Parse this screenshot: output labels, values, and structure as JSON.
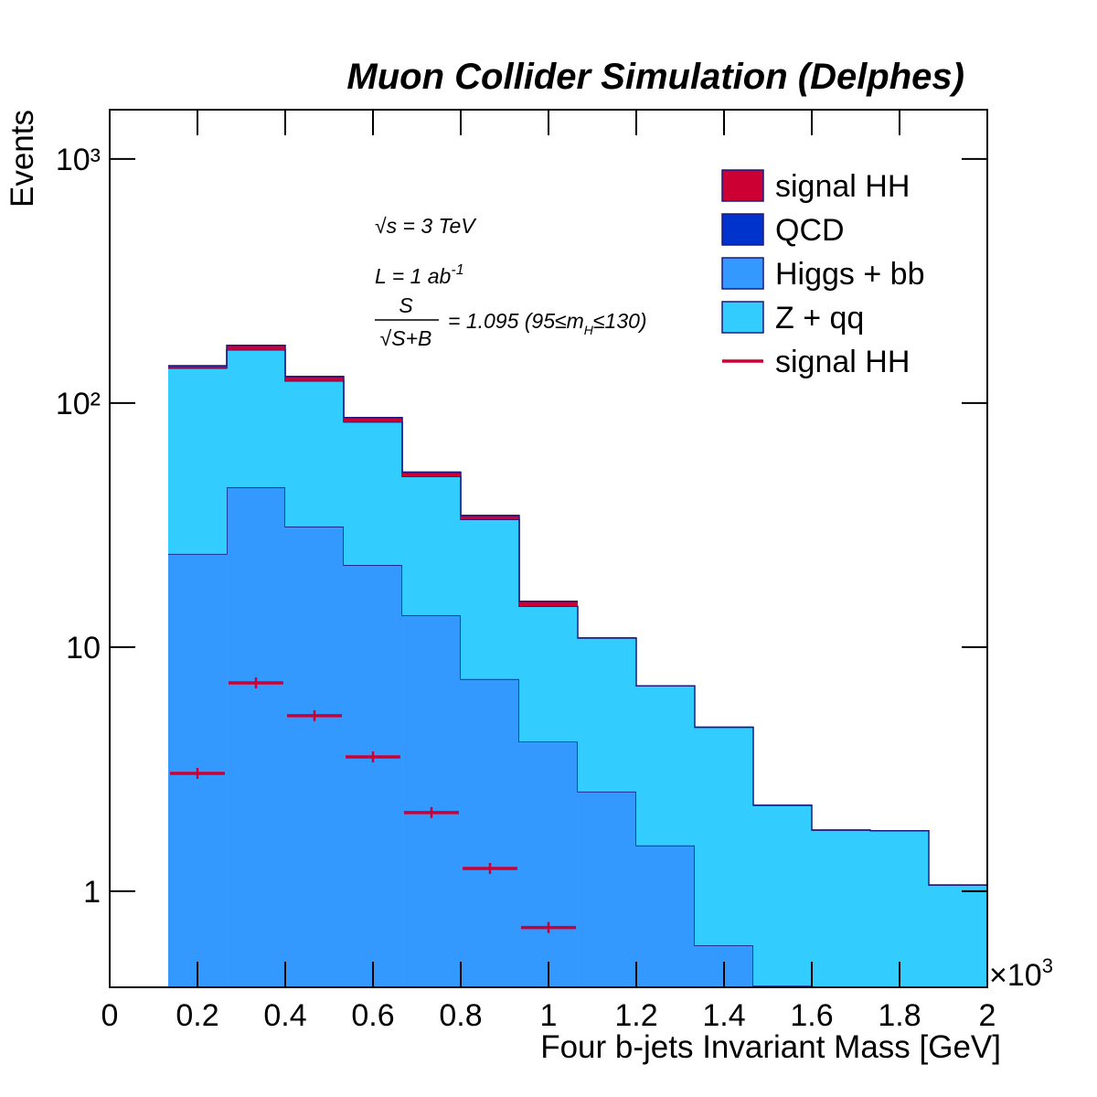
{
  "chart_data": {
    "type": "stacked-histogram",
    "title": "Muon Collider Simulation (Delphes)",
    "x_label": "Four b-jets Invariant Mass [GeV]",
    "y_label": "Events",
    "x_multiplier": {
      "base": "×10",
      "exponent": "3"
    },
    "annotations": {
      "energy": "√s = 3 TeV",
      "lumi": {
        "text": "L = 1 ab",
        "sup": "-1"
      },
      "significance": {
        "numerator": "S",
        "denominator": "√S+B",
        "text": "= 1.095  (95≤m",
        "sub": "H",
        "after": "≤130)"
      }
    },
    "bins": [
      0,
      0.1333,
      0.2667,
      0.4,
      0.5333,
      0.6667,
      0.8,
      0.9333,
      1.0667,
      1.2,
      1.3333,
      1.4667,
      1.6,
      1.7333,
      1.8667,
      2.0
    ],
    "series": [
      {
        "name": "signal HH",
        "color": "#cc0033",
        "style": "fill",
        "values": [
          0,
          3.04,
          7.14,
          5.24,
          3.55,
          2.1,
          1.24,
          0.71,
          0,
          0,
          0,
          0,
          0,
          0,
          0
        ]
      },
      {
        "name": "QCD",
        "color": "#0033cc",
        "style": "fill",
        "values": [
          0,
          0,
          0,
          0,
          0,
          0,
          0,
          0,
          0,
          0,
          0,
          0,
          0,
          0,
          0
        ]
      },
      {
        "name": "Higgs + bb",
        "color": "#3399ff",
        "style": "fill",
        "values": [
          0,
          24.1,
          45.2,
          31.2,
          21.7,
          13.5,
          7.4,
          4.1,
          2.56,
          1.54,
          0.6,
          0.41,
          0,
          0,
          0
        ]
      },
      {
        "name": "Z + qq",
        "color": "#33ccff",
        "style": "fill",
        "values": [
          0,
          115,
          120,
          92,
          62,
          36.5,
          26,
          10.6,
          8.34,
          5.4,
          4.1,
          1.84,
          1.78,
          1.77,
          1.06
        ]
      },
      {
        "name": "signal HH",
        "color": "#cc0033",
        "style": "points",
        "values": [
          null,
          3.04,
          7.14,
          5.24,
          3.55,
          2.1,
          1.24,
          0.71,
          null,
          null,
          null,
          null,
          null,
          null,
          null
        ]
      }
    ],
    "stack_order": [
      2,
      3,
      1,
      0
    ],
    "outline_color": "#1a1a80",
    "xlim": [
      0,
      2
    ],
    "xticks": [
      0,
      0.2,
      0.4,
      0.6,
      0.8,
      1,
      1.2,
      1.4,
      1.6,
      1.8,
      2
    ],
    "ylim": [
      0.404,
      1592
    ],
    "yticks": [
      1,
      10,
      {
        "value": 100,
        "label": "10²"
      },
      {
        "value": 1000,
        "label": "10³"
      }
    ],
    "log_y": true,
    "legend": "top-right"
  }
}
